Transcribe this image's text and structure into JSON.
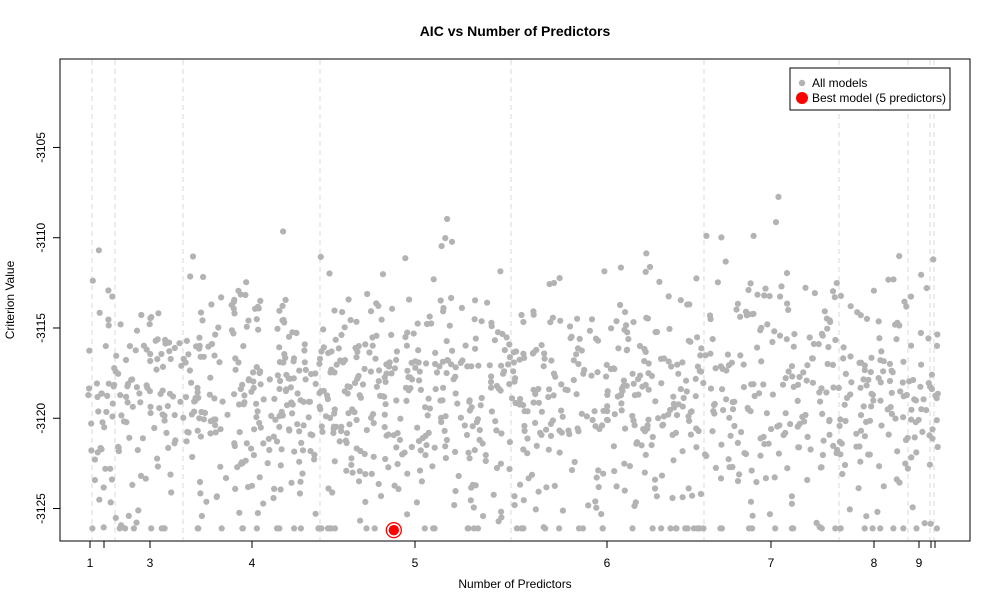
{
  "chart_data": {
    "type": "scatter",
    "title": "AIC vs Number of Predictors",
    "xlabel": "Number of Predictors",
    "ylabel": "Criterion Value",
    "x_ticks": [
      {
        "label": "1",
        "value": 1.0
      },
      {
        "label": "",
        "value": 1.35
      },
      {
        "label": "3",
        "value": 2.5
      },
      {
        "label": "4",
        "value": 4.0
      },
      {
        "label": "5",
        "value": 5.0
      },
      {
        "label": "6",
        "value": 6.0
      },
      {
        "label": "7",
        "value": 7.0
      },
      {
        "label": "8",
        "value": 8.0
      },
      {
        "label": "9",
        "value": 9.0
      },
      {
        "label": "",
        "value": 9.4
      },
      {
        "label": "",
        "value": 9.5
      }
    ],
    "y_ticks": [
      -3125,
      -3120,
      -3115,
      -3110,
      -3105
    ],
    "ylim": [
      -3126.8,
      -3100.1
    ],
    "group_boundaries": [
      1.0,
      1.4,
      3.0,
      4.4,
      5.5,
      6.6,
      7.7,
      8.7,
      9.3,
      9.4
    ],
    "point_count": 1300,
    "y_center": -3118.5,
    "best_model": {
      "x": 4.87,
      "y": -3126.2,
      "predictors": 5
    },
    "colors": {
      "all_models": "#b3b3b3",
      "best_model": "#ff0000",
      "grid": "#d9d9d9"
    },
    "grid": "vertical-dashed",
    "legend": {
      "position": "top-right",
      "entries": [
        {
          "label": "All models",
          "color": "#b3b3b3"
        },
        {
          "label": "Best model (5 predictors)",
          "color": "#ff0000"
        }
      ]
    }
  }
}
